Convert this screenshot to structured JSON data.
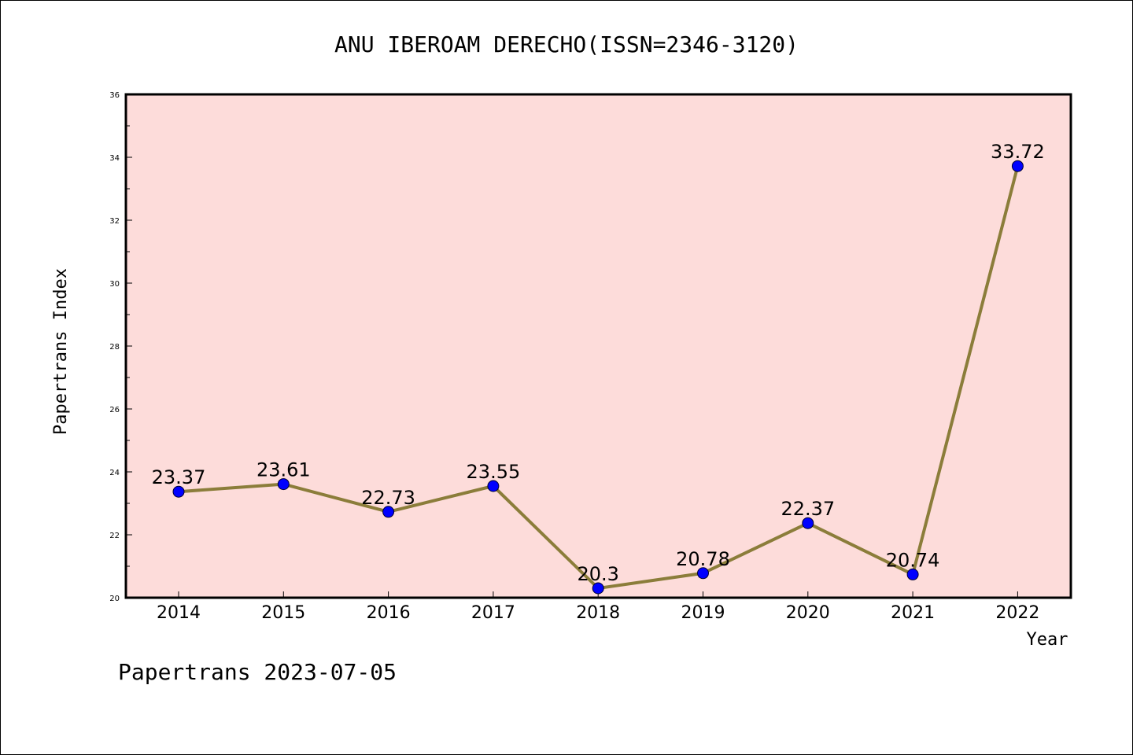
{
  "chart_data": {
    "type": "line",
    "title": "ANU IBEROAM DERECHO(ISSN=2346-3120)",
    "xlabel": "Year",
    "ylabel": "Papertrans Index",
    "categories": [
      "2014",
      "2015",
      "2016",
      "2017",
      "2018",
      "2019",
      "2020",
      "2021",
      "2022"
    ],
    "series": [
      {
        "values": [
          23.37,
          23.61,
          22.73,
          23.55,
          20.3,
          20.78,
          22.37,
          20.74,
          33.72
        ],
        "labels": [
          "23.37",
          "23.61",
          "22.73",
          "23.55",
          "20.3",
          "20.78",
          "22.37",
          "20.74",
          "33.72"
        ]
      }
    ],
    "ylim": [
      20,
      36
    ],
    "yticks": [
      "20",
      "22",
      "24",
      "26",
      "28",
      "30",
      "32",
      "34",
      "36"
    ],
    "grid": false,
    "footer": "Papertrans 2023-07-05",
    "colors": {
      "plot_background": "#fddcda",
      "line": "#8b7d3a",
      "marker": "#0000ff"
    }
  }
}
